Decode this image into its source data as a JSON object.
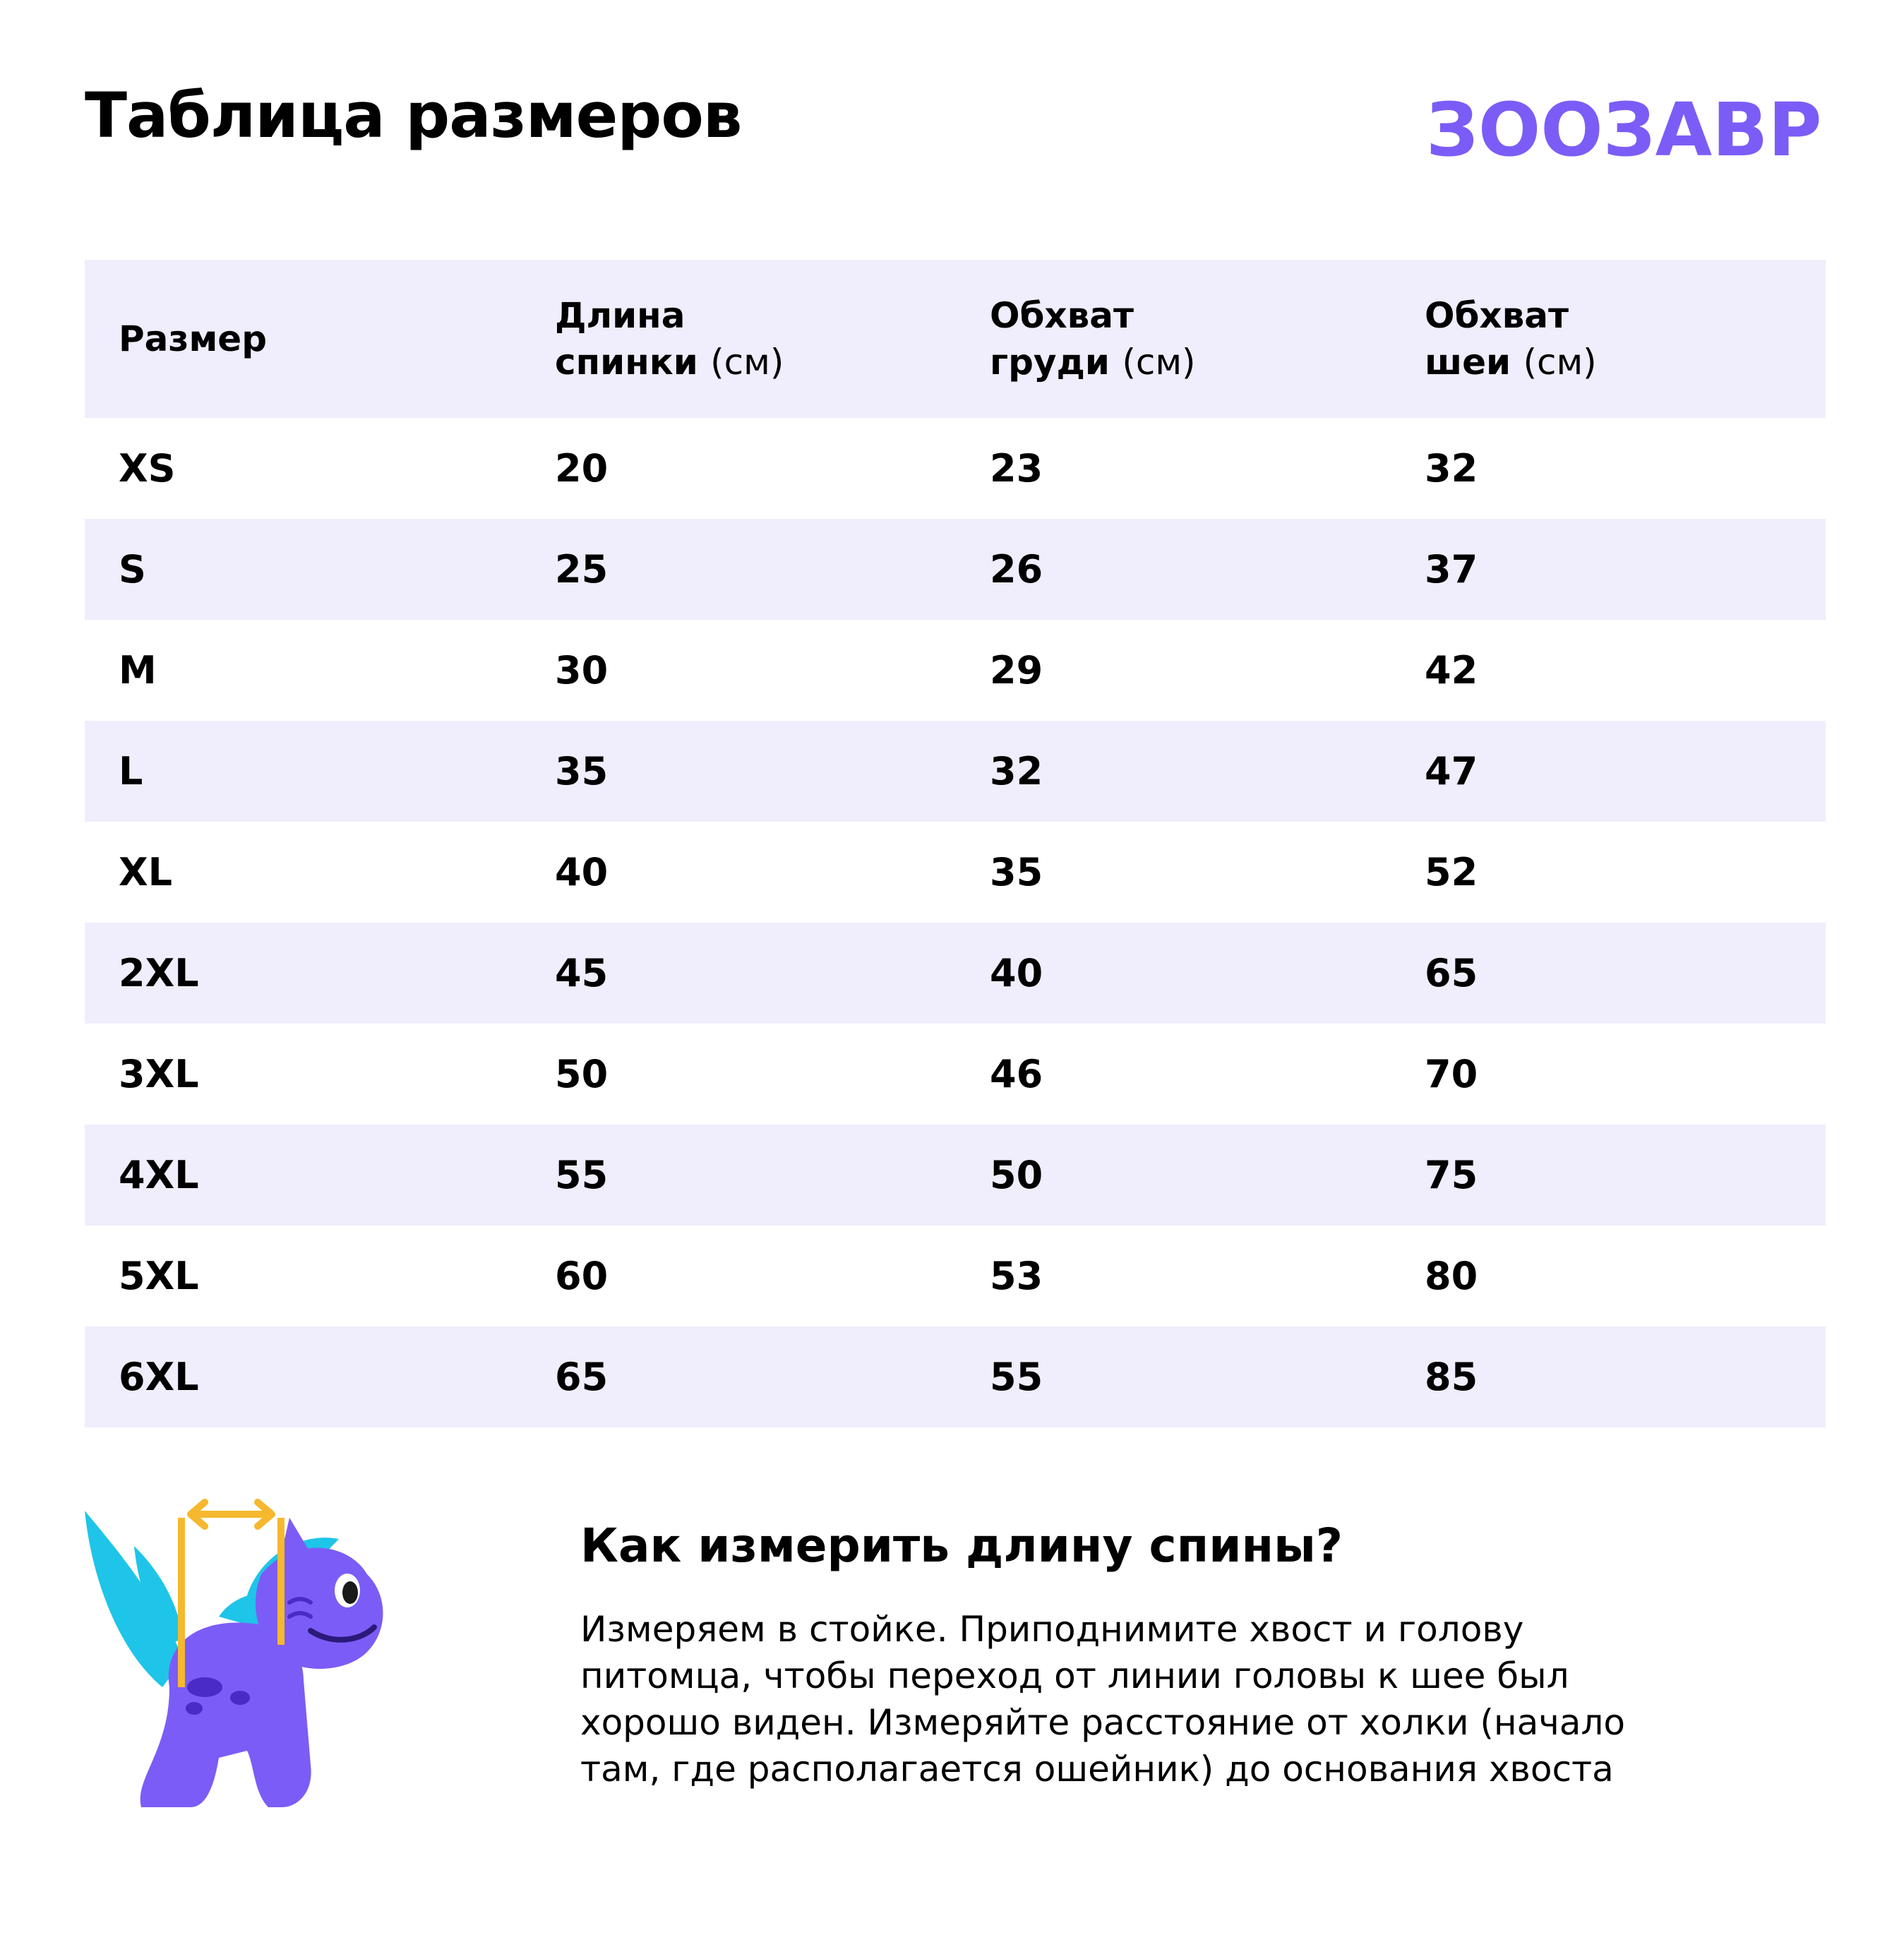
{
  "page": {
    "title": "Таблица размеров",
    "brand": {
      "name": "ЗООЗАВР",
      "color": "#7c5cf6"
    }
  },
  "table": {
    "header_bg": "#f0edfc",
    "columns": [
      {
        "line1": "Размер",
        "line2": "",
        "unit": ""
      },
      {
        "line1": "Длина",
        "line2": "спинки",
        "unit": "(см)"
      },
      {
        "line1": "Обхват",
        "line2": "груди",
        "unit": "(см)"
      },
      {
        "line1": "Обхват",
        "line2": "шеи",
        "unit": "(см)"
      }
    ],
    "rows": [
      [
        "XS",
        "20",
        "23",
        "32"
      ],
      [
        "S",
        "25",
        "26",
        "37"
      ],
      [
        "M",
        "30",
        "29",
        "42"
      ],
      [
        "L",
        "35",
        "32",
        "47"
      ],
      [
        "XL",
        "40",
        "35",
        "52"
      ],
      [
        "2XL",
        "45",
        "40",
        "65"
      ],
      [
        "3XL",
        "50",
        "46",
        "70"
      ],
      [
        "4XL",
        "55",
        "50",
        "75"
      ],
      [
        "5XL",
        "60",
        "53",
        "80"
      ],
      [
        "6XL",
        "65",
        "55",
        "85"
      ]
    ]
  },
  "howto": {
    "title": "Как измерить длину спины?",
    "text": "Измеряем в стойке. Приподнимите хвост и голову питомца, чтобы переход от линии головы к шее был хорошо виден. Измеряйте расстояние от холки (начало там, где располагается ошейник) до основания хвоста"
  },
  "illustration": {
    "subject": "purple-dino-mascot-icon",
    "measure_color": "#f5b82e",
    "spike_color": "#1ec5e8",
    "body_color": "#7c5cf6"
  }
}
